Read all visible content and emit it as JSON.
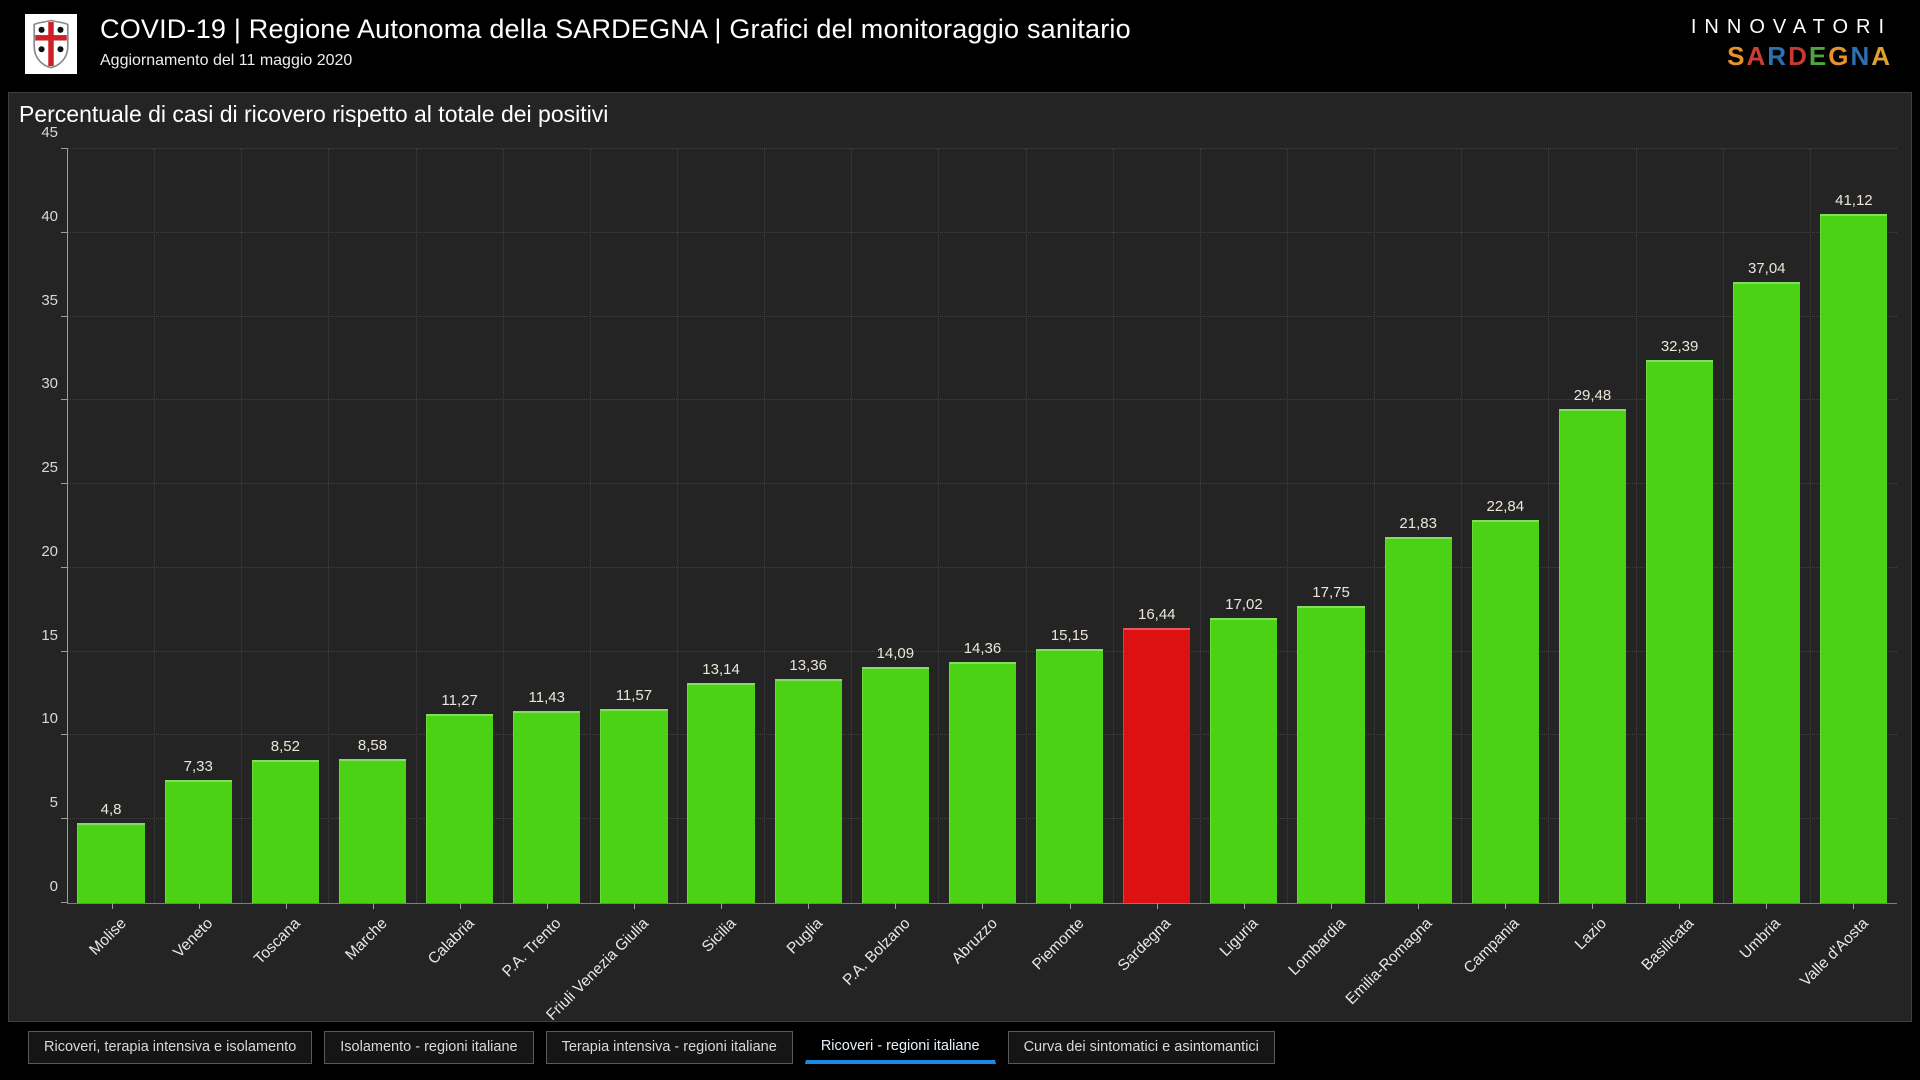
{
  "header": {
    "title": "COVID-19 | Regione Autonoma della SARDEGNA | Grafici del monitoraggio sanitario",
    "subtitle": "Aggiornamento del 11 maggio 2020",
    "brand_line1": "INNOVATORI",
    "brand_letters": [
      {
        "ch": "S",
        "color": "#e8922c"
      },
      {
        "ch": "A",
        "color": "#c8402f"
      },
      {
        "ch": "R",
        "color": "#2e6fae"
      },
      {
        "ch": "D",
        "color": "#c23b2e"
      },
      {
        "ch": "E",
        "color": "#4ca53e"
      },
      {
        "ch": "G",
        "color": "#e8922c"
      },
      {
        "ch": "N",
        "color": "#2e6fae"
      },
      {
        "ch": "A",
        "color": "#e0a02e"
      }
    ]
  },
  "panel": {
    "title": "Percentuale di casi di ricovero rispetto al totale dei positivi"
  },
  "chart_data": {
    "type": "bar",
    "title": "Percentuale di casi di ricovero rispetto al totale dei positivi",
    "categories": [
      "Molise",
      "Veneto",
      "Toscana",
      "Marche",
      "Calabria",
      "P.A. Trento",
      "Friuli Venezia Giulia",
      "Sicilia",
      "Puglia",
      "P.A. Bolzano",
      "Abruzzo",
      "Piemonte",
      "Sardegna",
      "Liguria",
      "Lombardia",
      "Emilia-Romagna",
      "Campania",
      "Lazio",
      "Basilicata",
      "Umbria",
      "Valle d'Aosta"
    ],
    "values": [
      4.8,
      7.33,
      8.52,
      8.58,
      11.27,
      11.43,
      11.57,
      13.14,
      13.36,
      14.09,
      14.36,
      15.15,
      16.44,
      17.02,
      17.75,
      21.83,
      22.84,
      29.48,
      32.39,
      37.04,
      41.12
    ],
    "value_labels": [
      "4,8",
      "7,33",
      "8,52",
      "8,58",
      "11,27",
      "11,43",
      "11,57",
      "13,14",
      "13,36",
      "14,09",
      "14,36",
      "15,15",
      "16,44",
      "17,02",
      "17,75",
      "21,83",
      "22,84",
      "29,48",
      "32,39",
      "37,04",
      "41,12"
    ],
    "xlabel": "",
    "ylabel": "",
    "ylim": [
      0,
      45
    ],
    "yticks": [
      0,
      5,
      10,
      15,
      20,
      25,
      30,
      35,
      40,
      45
    ],
    "grid": "dotted",
    "legend": "none",
    "bar_color": "#4cd214",
    "highlight_color": "#dd1111",
    "highlight_index": 12,
    "highlight_category": "Sardegna"
  },
  "tabs": [
    {
      "label": "Ricoveri, terapia intensiva e isolamento",
      "active": false
    },
    {
      "label": "Isolamento - regioni italiane",
      "active": false
    },
    {
      "label": "Terapia intensiva - regioni italiane",
      "active": false
    },
    {
      "label": "Ricoveri - regioni italiane",
      "active": true
    },
    {
      "label": "Curva dei sintomatici e asintomantici",
      "active": false
    }
  ],
  "accent_colors": {
    "active_tab_underline": "#1e88e5",
    "flag_cross_red": "#cf2027"
  }
}
